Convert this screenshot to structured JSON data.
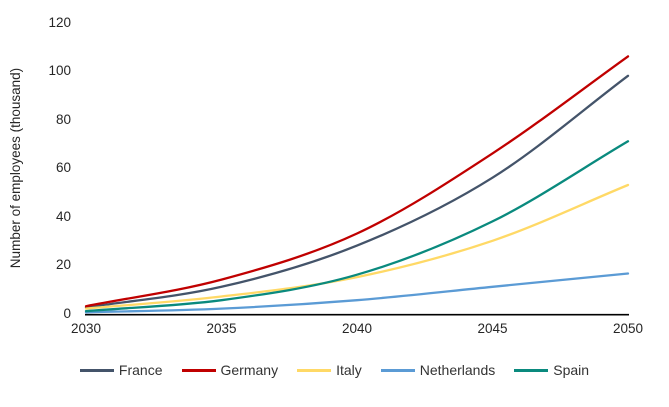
{
  "chart_data": {
    "type": "line",
    "title": "",
    "xlabel": "",
    "ylabel": "Number of employees (thousand)",
    "x": [
      2030,
      2035,
      2040,
      2045,
      2050
    ],
    "series": [
      {
        "name": "France",
        "color": "#44546A",
        "values": [
          2.5,
          11,
          28,
          56,
          98
        ]
      },
      {
        "name": "Germany",
        "color": "#C00000",
        "values": [
          3,
          14,
          33,
          66,
          106
        ]
      },
      {
        "name": "Italy",
        "color": "#FFD966",
        "values": [
          2,
          7,
          15,
          30,
          53
        ]
      },
      {
        "name": "Netherlands",
        "color": "#5B9BD5",
        "values": [
          0.5,
          2,
          5.5,
          11,
          16.5
        ]
      },
      {
        "name": "Spain",
        "color": "#0A8A7E",
        "values": [
          1,
          5.5,
          16,
          38,
          71
        ]
      }
    ],
    "ylim": [
      0,
      120
    ],
    "yticks": [
      0,
      20,
      40,
      60,
      80,
      100,
      120
    ],
    "xticks": [
      2030,
      2035,
      2040,
      2045,
      2050
    ],
    "grid": false,
    "legend_position": "bottom",
    "axis_line_color": "#000000",
    "background_color": "#FFFFFF"
  }
}
